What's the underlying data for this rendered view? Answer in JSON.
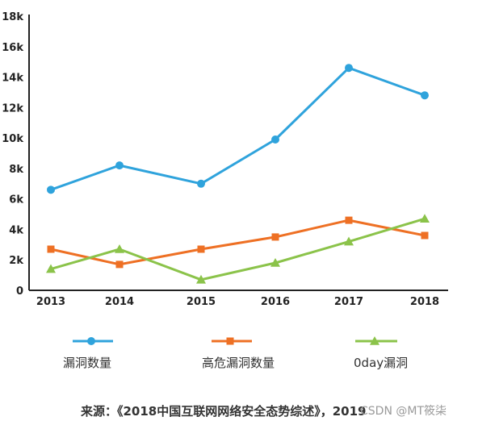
{
  "chart_data": {
    "type": "line",
    "categories": [
      "2013",
      "2014",
      "2015",
      "2016",
      "2017",
      "2018"
    ],
    "y_ticks": [
      "0",
      "2k",
      "4k",
      "6k",
      "8k",
      "10k",
      "12k",
      "14k",
      "16k",
      "18k"
    ],
    "ylim": [
      0,
      18000
    ],
    "grid": false,
    "legend_position": "bottom",
    "series": [
      {
        "name": "漏洞数量",
        "color": "#2fa3dc",
        "marker": "circle",
        "values": [
          6600,
          8200,
          7000,
          9900,
          14600,
          12800
        ]
      },
      {
        "name": "高危漏洞数量",
        "color": "#ee7024",
        "marker": "square",
        "values": [
          2700,
          1700,
          2700,
          3500,
          4600,
          3600
        ]
      },
      {
        "name": "0day漏洞",
        "color": "#8bc34a",
        "marker": "triangle",
        "values": [
          1400,
          2700,
          700,
          1800,
          3200,
          4700
        ]
      }
    ]
  },
  "source_text": "来源：《2018中国互联网网络安全态势综述》，2019",
  "watermark": "CSDN @MT筱柒"
}
